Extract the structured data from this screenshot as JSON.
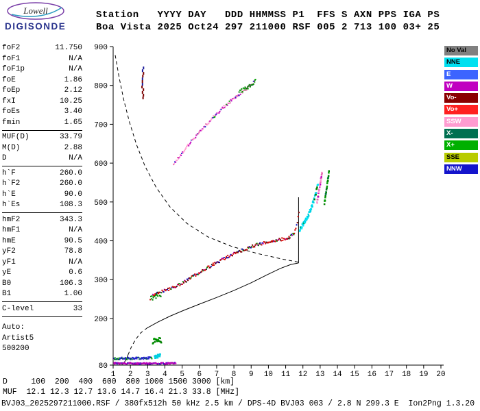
{
  "logo": {
    "title": "Lowell",
    "subtitle": "DIGISONDE"
  },
  "header": {
    "line1": "Station   YYYY DAY   DDD HHMMSS P1  FFS S AXN PPS IGA PS",
    "line2": "Boa Vista 2025 Oct24 297 211000 RSF 005 2 713 100 03+ 25"
  },
  "params": {
    "groups": [
      {
        "rows": [
          [
            "foF2",
            "11.750"
          ],
          [
            "foF1",
            "N/A"
          ],
          [
            "foF1p",
            "N/A"
          ],
          [
            "foE",
            "1.86"
          ],
          [
            "foEp",
            "2.12"
          ],
          [
            "fxI",
            "10.25"
          ],
          [
            "foEs",
            "3.40"
          ],
          [
            "fmin",
            "1.65"
          ]
        ]
      },
      {
        "rows": [
          [
            "MUF(D)",
            "33.79"
          ],
          [
            "M(D)",
            "2.88"
          ],
          [
            "D",
            "N/A"
          ]
        ]
      },
      {
        "rows": [
          [
            "h`F",
            "260.0"
          ],
          [
            "h`F2",
            "260.0"
          ],
          [
            "h`E",
            "90.0"
          ],
          [
            "h`Es",
            "108.3"
          ]
        ]
      },
      {
        "rows": [
          [
            "hmF2",
            "343.3"
          ],
          [
            "hmF1",
            "N/A"
          ],
          [
            "hmE",
            "90.5"
          ],
          [
            "yF2",
            "78.8"
          ],
          [
            "yF1",
            "N/A"
          ],
          [
            "yE",
            "0.6"
          ],
          [
            "B0",
            "106.3"
          ],
          [
            "B1",
            "1.00"
          ]
        ]
      },
      {
        "rows": [
          [
            "C-level",
            "33"
          ]
        ]
      },
      {
        "gap_before": true,
        "rows": [
          [
            "Auto:",
            ""
          ],
          [
            "Artist5",
            ""
          ],
          [
            "500200",
            ""
          ]
        ]
      }
    ]
  },
  "legend": {
    "items": [
      {
        "label": "No Val",
        "color": "#808080",
        "text": "#000000"
      },
      {
        "label": "NNE",
        "color": "#00e0f0",
        "text": "#000000"
      },
      {
        "label": "E",
        "color": "#3c64ff",
        "text": "#ffffff"
      },
      {
        "label": "W",
        "color": "#c000c0",
        "text": "#ffffff"
      },
      {
        "label": "Vo-",
        "color": "#8a0000",
        "text": "#ffffff"
      },
      {
        "label": "Vo+",
        "color": "#ff2020",
        "text": "#ffffff"
      },
      {
        "label": "SSW",
        "color": "#ff9bd0",
        "text": "#ffffff"
      },
      {
        "label": "X-",
        "color": "#007050",
        "text": "#ffffff"
      },
      {
        "label": "X+",
        "color": "#00b000",
        "text": "#ffffff"
      },
      {
        "label": "SSE",
        "color": "#b8cc00",
        "text": "#000000"
      },
      {
        "label": "NNW",
        "color": "#1414cc",
        "text": "#ffffff"
      }
    ]
  },
  "bottom": {
    "d_line": "D     100  200  400  600  800 1000 1500 3000 [km]",
    "muf_line": "MUF  12.1 12.3 12.7 13.6 14.7 16.4 21.3 33.8 [MHz]",
    "status": "BVJ03_2025297211000.RSF / 380fx512h 50 kHz 2.5 km / DPS-4D BVJ03 003 / 2.8 N 299.3 E  Ion2Png 1.3.20"
  },
  "chart_data": {
    "type": "scatter",
    "x_axis": {
      "min": 1,
      "max": 20,
      "ticks": [
        1,
        2,
        3,
        4,
        5,
        6,
        7,
        8,
        9,
        10,
        11,
        12,
        13,
        14,
        15,
        16,
        17,
        18,
        19,
        20
      ]
    },
    "y_axis": {
      "min": 80,
      "max": 900,
      "ticks": [
        80,
        200,
        300,
        400,
        500,
        600,
        700,
        800,
        900
      ]
    },
    "profile_curves": [
      {
        "name": "topside-profile",
        "style": "dashed",
        "points": [
          [
            1.12,
            878
          ],
          [
            1.35,
            820
          ],
          [
            1.62,
            762
          ],
          [
            1.95,
            705
          ],
          [
            2.35,
            648
          ],
          [
            2.85,
            592
          ],
          [
            3.5,
            537
          ],
          [
            4.3,
            487
          ],
          [
            5.3,
            444
          ],
          [
            6.5,
            410
          ],
          [
            7.9,
            385
          ],
          [
            9.4,
            367
          ],
          [
            10.8,
            353
          ],
          [
            11.75,
            345
          ]
        ]
      },
      {
        "name": "bottomside-profile",
        "style": "solid",
        "points": [
          [
            2.95,
            175
          ],
          [
            3.6,
            191
          ],
          [
            4.3,
            206
          ],
          [
            5.1,
            221
          ],
          [
            6.0,
            237
          ],
          [
            7.0,
            254
          ],
          [
            8.0,
            272
          ],
          [
            9.0,
            292
          ],
          [
            9.9,
            312
          ],
          [
            10.7,
            329
          ],
          [
            11.3,
            339
          ],
          [
            11.75,
            343
          ]
        ]
      },
      {
        "name": "valley-profile",
        "style": "dashed",
        "points": [
          [
            1.86,
            106
          ],
          [
            2.05,
            126
          ],
          [
            2.3,
            146
          ],
          [
            2.6,
            163
          ],
          [
            2.95,
            175
          ]
        ]
      },
      {
        "name": "e-region-profile",
        "style": "solid",
        "points": [
          [
            1.5,
            81
          ],
          [
            1.66,
            88
          ],
          [
            1.78,
            97
          ],
          [
            1.86,
            106
          ]
        ]
      },
      {
        "name": "foF2-spur",
        "style": "solid",
        "points": [
          [
            11.75,
            343
          ],
          [
            11.75,
            512
          ]
        ]
      }
    ],
    "traces": [
      {
        "name": "F-trace-onset",
        "palette": [
          "#008000",
          "#00a000",
          "#cc0000"
        ],
        "weights": [
          3,
          2,
          1
        ],
        "path": [
          [
            3.15,
            252
          ],
          [
            3.45,
            258
          ],
          [
            3.8,
            264
          ]
        ],
        "step": 0.035,
        "jitter": 7,
        "size": 2
      },
      {
        "name": "F-layer-O-mode",
        "palette": [
          "#cc0000",
          "#e01010",
          "#7a0000",
          "#008000",
          "#0000bb",
          "#b000b0",
          "#222222"
        ],
        "weights": [
          5,
          3,
          2,
          2,
          1.5,
          1,
          1
        ],
        "path": [
          [
            3.3,
            260
          ],
          [
            4.0,
            272
          ],
          [
            4.6,
            281
          ],
          [
            5.2,
            296
          ],
          [
            6.0,
            318
          ],
          [
            6.8,
            339
          ],
          [
            7.6,
            358
          ],
          [
            8.4,
            374
          ],
          [
            9.2,
            388
          ],
          [
            10.0,
            397
          ],
          [
            10.7,
            403
          ],
          [
            11.2,
            408
          ],
          [
            11.5,
            420
          ],
          [
            11.68,
            445
          ],
          [
            11.78,
            478
          ]
        ],
        "step": 0.045,
        "jitter": 3.5,
        "size": 2
      },
      {
        "name": "F-layer-X-mode",
        "palette": [
          "#00cfe0",
          "#00e5f5",
          "#008000"
        ],
        "weights": [
          5,
          4,
          1
        ],
        "path": [
          [
            11.82,
            428
          ],
          [
            12.05,
            444
          ],
          [
            12.3,
            464
          ],
          [
            12.55,
            492
          ],
          [
            12.75,
            522
          ],
          [
            12.88,
            548
          ]
        ],
        "step": 0.018,
        "jitter": 5,
        "size": 2.5
      },
      {
        "name": "peak-strand-pink",
        "palette": [
          "#ff9bd0",
          "#c000c0",
          "#e86ab0"
        ],
        "weights": [
          4,
          2,
          2
        ],
        "path": [
          [
            12.82,
            498
          ],
          [
            12.95,
            532
          ],
          [
            13.05,
            558
          ],
          [
            13.12,
            580
          ]
        ],
        "step": 0.012,
        "jitter": 4,
        "size": 2.5
      },
      {
        "name": "peak-strand-green",
        "palette": [
          "#00a000",
          "#007050",
          "#008000"
        ],
        "weights": [
          3,
          2,
          2
        ],
        "path": [
          [
            13.25,
            495
          ],
          [
            13.35,
            528
          ],
          [
            13.45,
            558
          ],
          [
            13.52,
            580
          ]
        ],
        "step": 0.012,
        "jitter": 4,
        "size": 2.5
      },
      {
        "name": "second-hop-trace",
        "palette": [
          "#ff9bd0",
          "#e86ab0",
          "#c000c0",
          "#2020cc",
          "#00a000"
        ],
        "weights": [
          5,
          2,
          2,
          1,
          0.8
        ],
        "path": [
          [
            4.5,
            597
          ],
          [
            5.1,
            632
          ],
          [
            5.7,
            665
          ],
          [
            6.3,
            694
          ],
          [
            6.9,
            722
          ],
          [
            7.5,
            748
          ],
          [
            8.1,
            770
          ],
          [
            8.7,
            790
          ],
          [
            9.25,
            812
          ]
        ],
        "step": 0.04,
        "jitter": 3.5,
        "size": 2
      },
      {
        "name": "second-hop-green-top",
        "palette": [
          "#00a000",
          "#008000"
        ],
        "weights": [
          1,
          1
        ],
        "path": [
          [
            8.3,
            782
          ],
          [
            8.8,
            796
          ],
          [
            9.3,
            812
          ]
        ],
        "step": 0.05,
        "jitter": 5,
        "size": 2
      },
      {
        "name": "es-blue-row",
        "palette": [
          "#2020cc",
          "#008000",
          "#00a000"
        ],
        "weights": [
          4,
          1,
          1
        ],
        "path": [
          [
            1.05,
            97
          ],
          [
            2.1,
            97
          ],
          [
            3.25,
            99
          ]
        ],
        "step": 0.03,
        "jitter": 3,
        "size": 2
      },
      {
        "name": "es-magenta-row",
        "palette": [
          "#b000b0",
          "#c000c0",
          "#2020cc"
        ],
        "weights": [
          4,
          3,
          1
        ],
        "path": [
          [
            1.05,
            85
          ],
          [
            2.5,
            84
          ],
          [
            4.65,
            85
          ]
        ],
        "step": 0.028,
        "jitter": 2,
        "size": 2
      },
      {
        "name": "es-cyan-blob",
        "palette": [
          "#00cfe0"
        ],
        "weights": [
          1
        ],
        "path": [
          [
            3.42,
            102
          ],
          [
            3.72,
            104
          ]
        ],
        "step": 0.03,
        "jitter": 4,
        "size": 3
      },
      {
        "name": "es-green-cluster",
        "palette": [
          "#00a000",
          "#008000"
        ],
        "weights": [
          1,
          1
        ],
        "path": [
          [
            3.3,
            140
          ],
          [
            3.55,
            147
          ],
          [
            3.8,
            143
          ]
        ],
        "step": 0.03,
        "jitter": 6,
        "size": 2.5
      },
      {
        "name": "spread-vertical-dashes",
        "vertical": true,
        "palette": [
          "#7a0000",
          "#1a1a99"
        ],
        "weights": [
          3,
          2
        ],
        "path": [
          [
            2.72,
            768
          ],
          [
            2.72,
            850
          ]
        ],
        "step": 7,
        "jitter": 0.05,
        "size": 2
      }
    ]
  }
}
